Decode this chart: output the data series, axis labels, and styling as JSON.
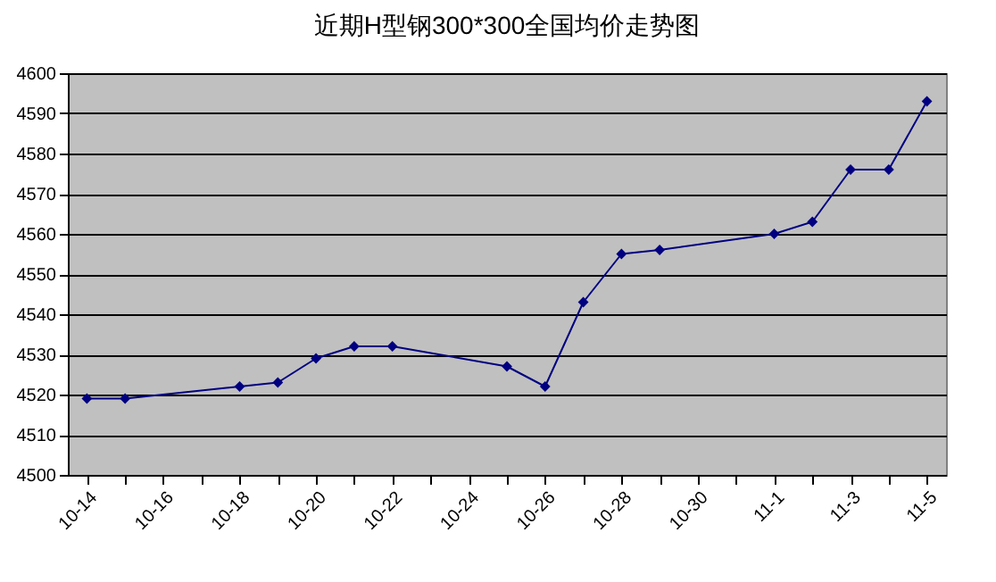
{
  "chart_data": {
    "type": "line",
    "title": "近期H型钢300*300全国均价走势图",
    "categories": [
      "10-14",
      null,
      "10-16",
      null,
      "10-18",
      null,
      "10-20",
      null,
      "10-22",
      null,
      "10-24",
      null,
      "10-26",
      null,
      "10-28",
      null,
      "10-30",
      null,
      "11-1",
      null,
      "11-3",
      null,
      "11-5"
    ],
    "series": [
      {
        "color": "#000080",
        "values": [
          4519,
          4519,
          null,
          null,
          4522,
          4523,
          4529,
          4532,
          4532,
          null,
          null,
          4527,
          4522,
          4543,
          4555,
          4556,
          null,
          null,
          4560,
          4563,
          4576,
          4576,
          4593
        ]
      }
    ],
    "ylim": [
      4500,
      4600
    ],
    "yticks": [
      4500,
      4510,
      4520,
      4530,
      4540,
      4550,
      4560,
      4570,
      4580,
      4590,
      4600
    ],
    "grid": "y",
    "marker": "diamond",
    "legend": false
  }
}
